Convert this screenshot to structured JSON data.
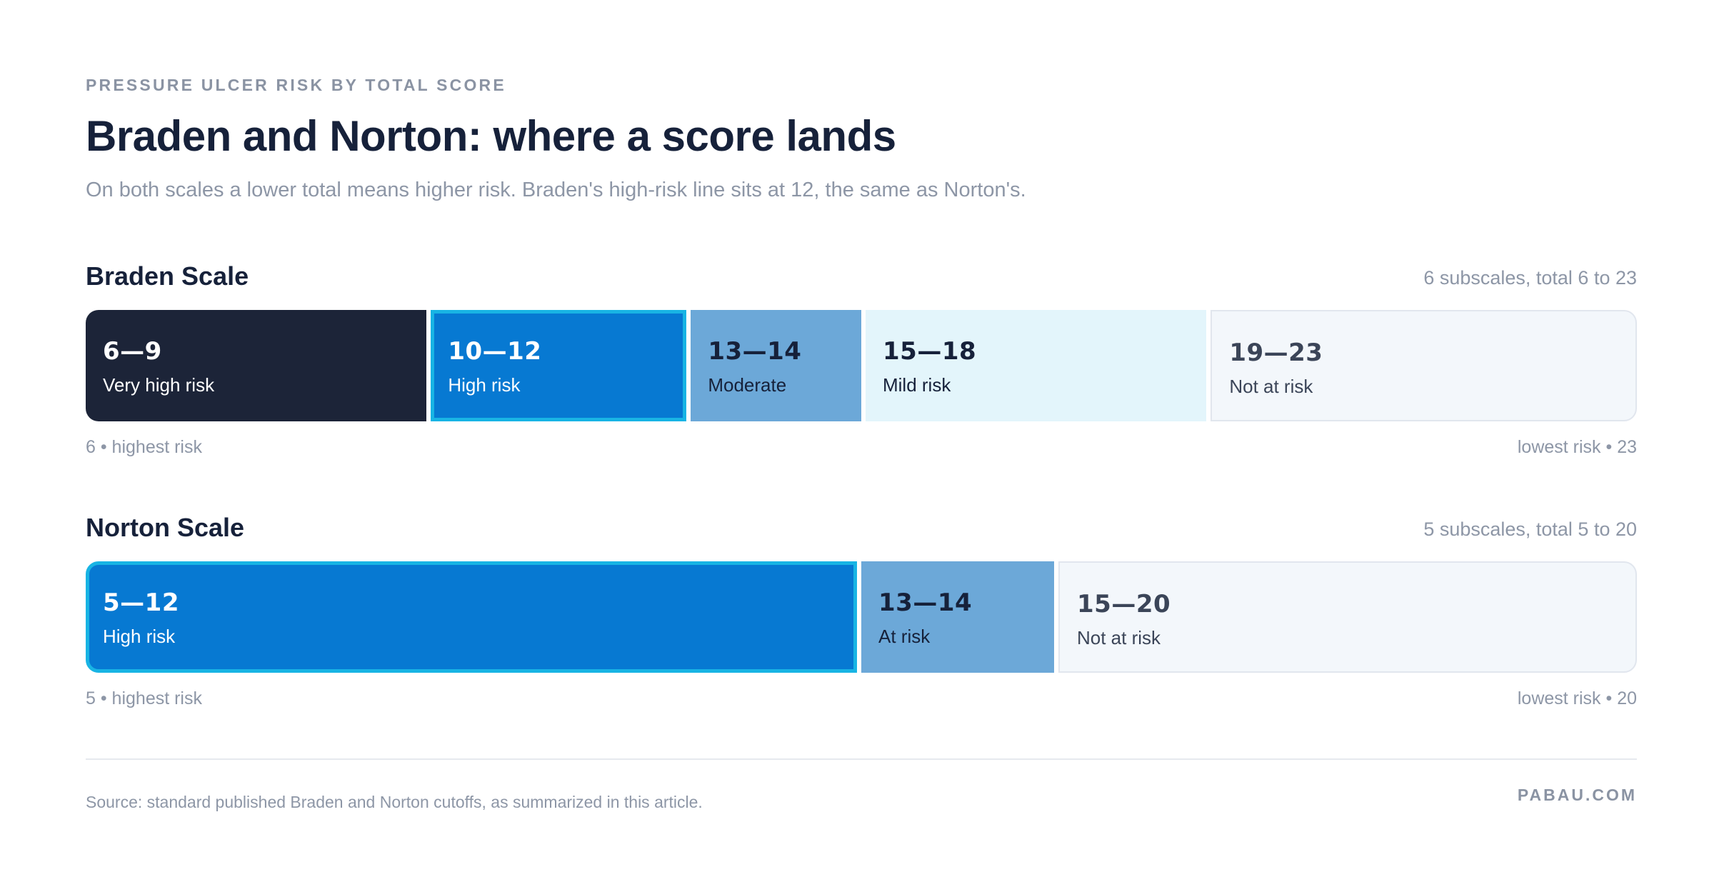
{
  "header": {
    "eyebrow": "PRESSURE ULCER RISK BY TOTAL SCORE",
    "title": "Braden and Norton: where a score lands",
    "subtitle": "On both scales a lower total means higher risk. Braden's high-risk line sits at 12, the same as Norton's."
  },
  "chart_data": [
    {
      "type": "bar",
      "orientation": "horizontal-segmented",
      "title": "Braden Scale",
      "meta": "6 subscales, total 6 to 23",
      "range": [
        6,
        23
      ],
      "segments": [
        {
          "range_label": "6—9",
          "label": "Very high risk",
          "start": 6,
          "end": 9,
          "fill": "#1c2438",
          "text": "#ffffff",
          "border": "none"
        },
        {
          "range_label": "10—12",
          "label": "High risk",
          "start": 10,
          "end": 12,
          "fill": "#0779d2",
          "text": "#ffffff",
          "border": "#18b4e4"
        },
        {
          "range_label": "13—14",
          "label": "Moderate",
          "start": 13,
          "end": 14,
          "fill": "#6ca8d8",
          "text": "#16213a",
          "border": "none"
        },
        {
          "range_label": "15—18",
          "label": "Mild risk",
          "start": 15,
          "end": 18,
          "fill": "#e3f5fb",
          "text": "#16213a",
          "border": "none"
        },
        {
          "range_label": "19—23",
          "label": "Not at risk",
          "start": 19,
          "end": 23,
          "fill": "#f3f7fb",
          "text": "#3b4558",
          "border": "#e1e6ee"
        }
      ],
      "low_end_label": "6 • highest risk",
      "high_end_label": "lowest risk • 23"
    },
    {
      "type": "bar",
      "orientation": "horizontal-segmented",
      "title": "Norton Scale",
      "meta": "5 subscales, total 5 to 20",
      "range": [
        5,
        20
      ],
      "segments": [
        {
          "range_label": "5—12",
          "label": "High risk",
          "start": 5,
          "end": 12,
          "fill": "#0779d2",
          "text": "#ffffff",
          "border": "#18b4e4"
        },
        {
          "range_label": "13—14",
          "label": "At risk",
          "start": 13,
          "end": 14,
          "fill": "#6ca8d8",
          "text": "#16213a",
          "border": "none"
        },
        {
          "range_label": "15—20",
          "label": "Not at risk",
          "start": 15,
          "end": 20,
          "fill": "#f3f7fb",
          "text": "#3b4558",
          "border": "#e1e6ee"
        }
      ],
      "low_end_label": "5 • highest risk",
      "high_end_label": "lowest risk • 20"
    }
  ],
  "footer": {
    "source": "Source: standard published Braden and Norton cutoffs, as summarized in this article.",
    "brand": "PABAU.COM"
  }
}
